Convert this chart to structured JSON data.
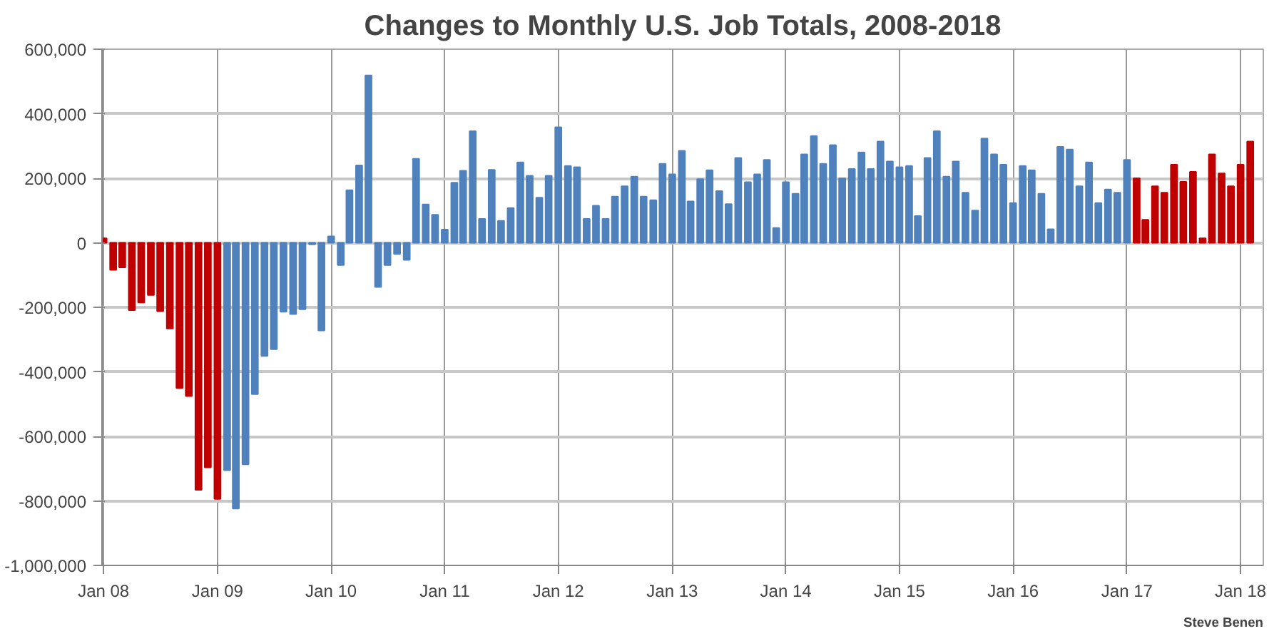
{
  "chart_data": {
    "type": "bar",
    "title": "Changes to Monthly U.S. Job Totals, 2008-2018",
    "x": [
      "2008-01",
      "2008-02",
      "2008-03",
      "2008-04",
      "2008-05",
      "2008-06",
      "2008-07",
      "2008-08",
      "2008-09",
      "2008-10",
      "2008-11",
      "2008-12",
      "2009-01",
      "2009-02",
      "2009-03",
      "2009-04",
      "2009-05",
      "2009-06",
      "2009-07",
      "2009-08",
      "2009-09",
      "2009-10",
      "2009-11",
      "2009-12",
      "2010-01",
      "2010-02",
      "2010-03",
      "2010-04",
      "2010-05",
      "2010-06",
      "2010-07",
      "2010-08",
      "2010-09",
      "2010-10",
      "2010-11",
      "2010-12",
      "2011-01",
      "2011-02",
      "2011-03",
      "2011-04",
      "2011-05",
      "2011-06",
      "2011-07",
      "2011-08",
      "2011-09",
      "2011-10",
      "2011-11",
      "2011-12",
      "2012-01",
      "2012-02",
      "2012-03",
      "2012-04",
      "2012-05",
      "2012-06",
      "2012-07",
      "2012-08",
      "2012-09",
      "2012-10",
      "2012-11",
      "2012-12",
      "2013-01",
      "2013-02",
      "2013-03",
      "2013-04",
      "2013-05",
      "2013-06",
      "2013-07",
      "2013-08",
      "2013-09",
      "2013-10",
      "2013-11",
      "2013-12",
      "2014-01",
      "2014-02",
      "2014-03",
      "2014-04",
      "2014-05",
      "2014-06",
      "2014-07",
      "2014-08",
      "2014-09",
      "2014-10",
      "2014-11",
      "2014-12",
      "2015-01",
      "2015-02",
      "2015-03",
      "2015-04",
      "2015-05",
      "2015-06",
      "2015-07",
      "2015-08",
      "2015-09",
      "2015-10",
      "2015-11",
      "2015-12",
      "2016-01",
      "2016-02",
      "2016-03",
      "2016-04",
      "2016-05",
      "2016-06",
      "2016-07",
      "2016-08",
      "2016-09",
      "2016-10",
      "2016-11",
      "2016-12",
      "2017-01",
      "2017-02",
      "2017-03",
      "2017-04",
      "2017-05",
      "2017-06",
      "2017-07",
      "2017-08",
      "2017-09",
      "2017-10",
      "2017-11",
      "2017-12",
      "2018-01",
      "2018-02"
    ],
    "values": [
      14000,
      -84000,
      -76000,
      -209000,
      -185000,
      -162000,
      -212000,
      -266000,
      -450000,
      -475000,
      -766000,
      -696000,
      -794000,
      -705000,
      -824000,
      -687000,
      -469000,
      -351000,
      -330000,
      -214000,
      -221000,
      -206000,
      -5000,
      -272000,
      20000,
      -69000,
      163000,
      240000,
      519000,
      -137000,
      -69000,
      -35000,
      -53000,
      260000,
      119000,
      87000,
      41000,
      186000,
      223000,
      346000,
      74000,
      226000,
      68000,
      108000,
      249000,
      208000,
      140000,
      208000,
      358000,
      238000,
      234000,
      74000,
      115000,
      74000,
      143000,
      175000,
      205000,
      143000,
      132000,
      245000,
      212000,
      285000,
      128000,
      197000,
      225000,
      160000,
      120000,
      263000,
      188000,
      212000,
      257000,
      46000,
      188000,
      152000,
      274000,
      331000,
      245000,
      303000,
      200000,
      229000,
      280000,
      229000,
      314000,
      252000,
      234000,
      238000,
      83000,
      263000,
      346000,
      205000,
      252000,
      155000,
      100000,
      323000,
      274000,
      242000,
      123000,
      238000,
      225000,
      152000,
      42000,
      297000,
      289000,
      175000,
      249000,
      123000,
      165000,
      155000,
      257000,
      200000,
      71000,
      175000,
      155000,
      242000,
      189000,
      220000,
      14000,
      274000,
      215000,
      175000,
      242000,
      314000
    ],
    "colors": [
      "#c00000",
      "#c00000",
      "#c00000",
      "#c00000",
      "#c00000",
      "#c00000",
      "#c00000",
      "#c00000",
      "#c00000",
      "#c00000",
      "#c00000",
      "#c00000",
      "#c00000",
      "#4f81bd",
      "#4f81bd",
      "#4f81bd",
      "#4f81bd",
      "#4f81bd",
      "#4f81bd",
      "#4f81bd",
      "#4f81bd",
      "#4f81bd",
      "#4f81bd",
      "#4f81bd",
      "#4f81bd",
      "#4f81bd",
      "#4f81bd",
      "#4f81bd",
      "#4f81bd",
      "#4f81bd",
      "#4f81bd",
      "#4f81bd",
      "#4f81bd",
      "#4f81bd",
      "#4f81bd",
      "#4f81bd",
      "#4f81bd",
      "#4f81bd",
      "#4f81bd",
      "#4f81bd",
      "#4f81bd",
      "#4f81bd",
      "#4f81bd",
      "#4f81bd",
      "#4f81bd",
      "#4f81bd",
      "#4f81bd",
      "#4f81bd",
      "#4f81bd",
      "#4f81bd",
      "#4f81bd",
      "#4f81bd",
      "#4f81bd",
      "#4f81bd",
      "#4f81bd",
      "#4f81bd",
      "#4f81bd",
      "#4f81bd",
      "#4f81bd",
      "#4f81bd",
      "#4f81bd",
      "#4f81bd",
      "#4f81bd",
      "#4f81bd",
      "#4f81bd",
      "#4f81bd",
      "#4f81bd",
      "#4f81bd",
      "#4f81bd",
      "#4f81bd",
      "#4f81bd",
      "#4f81bd",
      "#4f81bd",
      "#4f81bd",
      "#4f81bd",
      "#4f81bd",
      "#4f81bd",
      "#4f81bd",
      "#4f81bd",
      "#4f81bd",
      "#4f81bd",
      "#4f81bd",
      "#4f81bd",
      "#4f81bd",
      "#4f81bd",
      "#4f81bd",
      "#4f81bd",
      "#4f81bd",
      "#4f81bd",
      "#4f81bd",
      "#4f81bd",
      "#4f81bd",
      "#4f81bd",
      "#4f81bd",
      "#4f81bd",
      "#4f81bd",
      "#4f81bd",
      "#4f81bd",
      "#4f81bd",
      "#4f81bd",
      "#4f81bd",
      "#4f81bd",
      "#4f81bd",
      "#4f81bd",
      "#4f81bd",
      "#4f81bd",
      "#4f81bd",
      "#4f81bd",
      "#4f81bd",
      "#c00000",
      "#c00000",
      "#c00000",
      "#c00000",
      "#c00000",
      "#c00000",
      "#c00000",
      "#c00000",
      "#c00000",
      "#c00000",
      "#c00000",
      "#c00000",
      "#c00000"
    ],
    "xlim": [
      "2007-12-27",
      "2018-03-15"
    ],
    "xticks": [
      {
        "value": "2008-01",
        "label": "Jan 08"
      },
      {
        "value": "2009-01",
        "label": "Jan 09"
      },
      {
        "value": "2010-01",
        "label": "Jan 10"
      },
      {
        "value": "2011-01",
        "label": "Jan 11"
      },
      {
        "value": "2012-01",
        "label": "Jan 12"
      },
      {
        "value": "2013-01",
        "label": "Jan 13"
      },
      {
        "value": "2014-01",
        "label": "Jan 14"
      },
      {
        "value": "2015-01",
        "label": "Jan 15"
      },
      {
        "value": "2016-01",
        "label": "Jan 16"
      },
      {
        "value": "2017-01",
        "label": "Jan 17"
      },
      {
        "value": "2018-01",
        "label": "Jan 18"
      }
    ],
    "ylim": [
      -1000000,
      600000
    ],
    "yticks": [
      {
        "value": -1000000,
        "label": "-1,000,000"
      },
      {
        "value": -800000,
        "label": "-800,000"
      },
      {
        "value": -600000,
        "label": "-600,000"
      },
      {
        "value": -400000,
        "label": "-400,000"
      },
      {
        "value": -200000,
        "label": "-200,000"
      },
      0,
      {
        "value": 200000,
        "label": "200,000"
      },
      {
        "value": 400000,
        "label": "400,000"
      },
      {
        "value": 600000,
        "label": "600,000"
      }
    ],
    "grid": true,
    "annotations": [
      "Steve Benen"
    ]
  }
}
